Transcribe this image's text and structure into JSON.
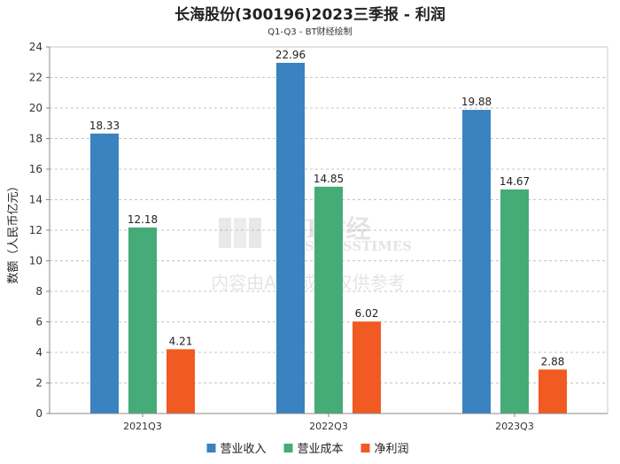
{
  "chart_data": {
    "type": "bar",
    "title": "长海股份(300196)2023三季报 - 利润",
    "subtitle": "Q1-Q3 - BT财经绘制",
    "categories": [
      "2021Q3",
      "2022Q3",
      "2023Q3"
    ],
    "series": [
      {
        "name": "营业收入",
        "color": "#3a82c0",
        "values": [
          18.33,
          22.96,
          19.88
        ]
      },
      {
        "name": "营业成本",
        "color": "#45ac78",
        "values": [
          12.18,
          14.85,
          14.67
        ]
      },
      {
        "name": "净利润",
        "color": "#f25a23",
        "values": [
          4.21,
          6.02,
          2.88
        ]
      }
    ],
    "ylabel": "数额（人民币亿元）",
    "xlabel": "",
    "ylim": [
      0,
      24
    ],
    "yticks": [
      0,
      2,
      4,
      6,
      8,
      10,
      12,
      14,
      16,
      18,
      20,
      22,
      24
    ],
    "grid": true,
    "legend": "bottom"
  },
  "watermark": {
    "brand": "BT财经",
    "brand_en": "BUSINESSTIMES",
    "notice": "内容由AI生成，仅供参考"
  }
}
